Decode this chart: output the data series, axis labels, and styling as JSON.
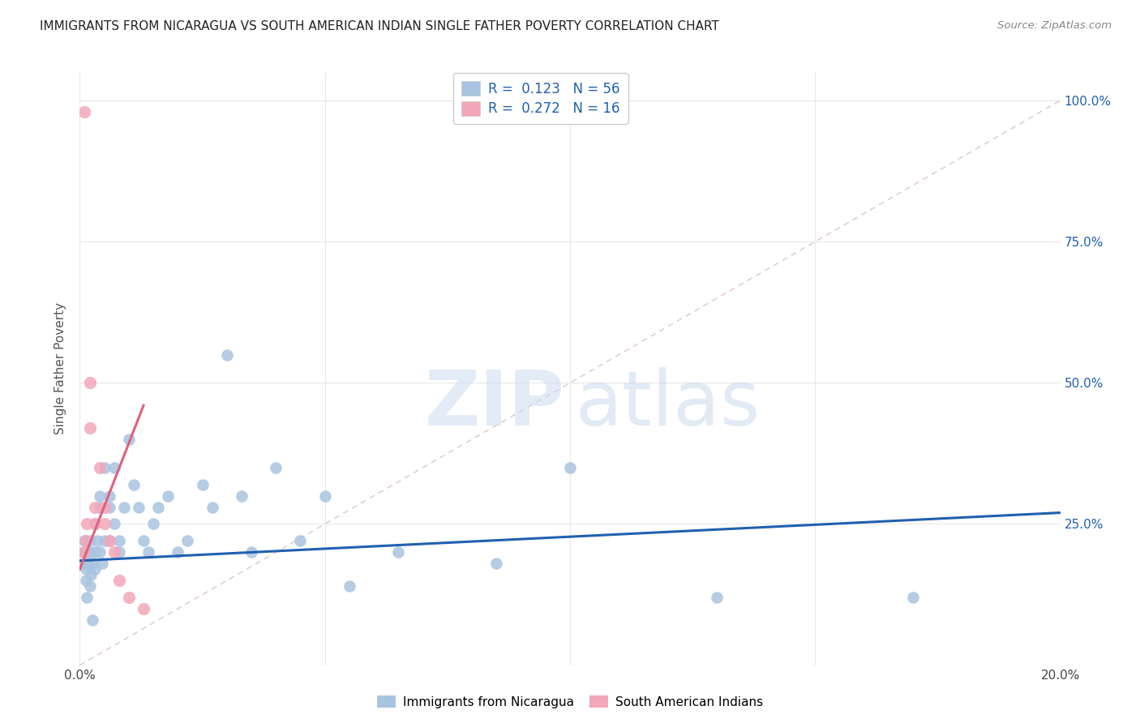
{
  "title": "IMMIGRANTS FROM NICARAGUA VS SOUTH AMERICAN INDIAN SINGLE FATHER POVERTY CORRELATION CHART",
  "source": "Source: ZipAtlas.com",
  "ylabel": "Single Father Poverty",
  "xlim": [
    0.0,
    0.2
  ],
  "ylim": [
    0.0,
    1.05
  ],
  "r_nicaragua": 0.123,
  "n_nicaragua": 56,
  "r_sa_indian": 0.272,
  "n_sa_indian": 16,
  "blue_color": "#a8c4e0",
  "pink_color": "#f4a7b9",
  "blue_line_color": "#2060b0",
  "pink_line_color": "#e06080",
  "diagonal_color": "#d8c0c8",
  "title_color": "#222222",
  "source_color": "#888888",
  "axis_label_color": "#555555",
  "tick_color_right": "#2060b0",
  "grid_color": "#e8e8e8",
  "nic_x": [
    0.0008,
    0.001,
    0.001,
    0.0012,
    0.0013,
    0.0015,
    0.0015,
    0.0018,
    0.002,
    0.002,
    0.002,
    0.0022,
    0.0025,
    0.0025,
    0.003,
    0.003,
    0.003,
    0.0035,
    0.004,
    0.004,
    0.004,
    0.0045,
    0.005,
    0.005,
    0.006,
    0.006,
    0.006,
    0.007,
    0.007,
    0.008,
    0.008,
    0.009,
    0.01,
    0.011,
    0.012,
    0.013,
    0.014,
    0.015,
    0.016,
    0.018,
    0.02,
    0.022,
    0.025,
    0.027,
    0.03,
    0.033,
    0.035,
    0.04,
    0.045,
    0.05,
    0.055,
    0.065,
    0.085,
    0.1,
    0.13,
    0.17
  ],
  "nic_y": [
    0.18,
    0.2,
    0.22,
    0.15,
    0.17,
    0.12,
    0.2,
    0.18,
    0.14,
    0.2,
    0.22,
    0.16,
    0.08,
    0.18,
    0.2,
    0.17,
    0.25,
    0.22,
    0.28,
    0.3,
    0.2,
    0.18,
    0.35,
    0.22,
    0.28,
    0.22,
    0.3,
    0.35,
    0.25,
    0.2,
    0.22,
    0.28,
    0.4,
    0.32,
    0.28,
    0.22,
    0.2,
    0.25,
    0.28,
    0.3,
    0.2,
    0.22,
    0.32,
    0.28,
    0.55,
    0.3,
    0.2,
    0.35,
    0.22,
    0.3,
    0.14,
    0.2,
    0.18,
    0.35,
    0.12,
    0.12
  ],
  "sa_x": [
    0.0008,
    0.001,
    0.0012,
    0.0015,
    0.002,
    0.002,
    0.003,
    0.003,
    0.004,
    0.005,
    0.005,
    0.006,
    0.007,
    0.008,
    0.01,
    0.013
  ],
  "sa_y": [
    0.2,
    0.98,
    0.22,
    0.25,
    0.5,
    0.42,
    0.28,
    0.25,
    0.35,
    0.28,
    0.25,
    0.22,
    0.2,
    0.15,
    0.12,
    0.1
  ]
}
